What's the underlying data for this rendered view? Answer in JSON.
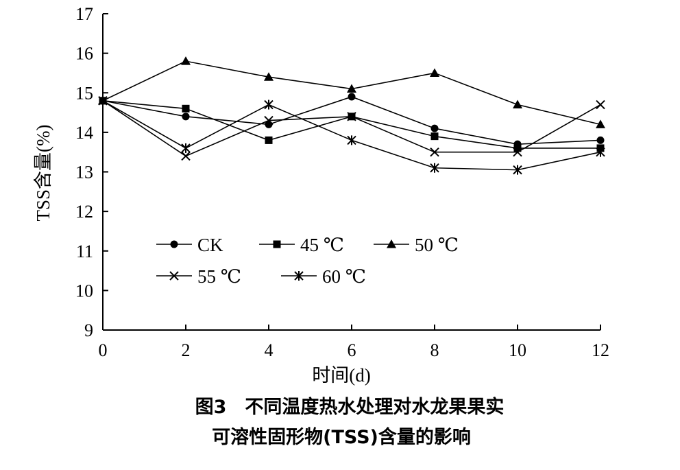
{
  "chart_data": {
    "type": "line",
    "x": [
      0,
      2,
      4,
      6,
      8,
      10,
      12
    ],
    "xlabel": "时间(d)",
    "ylabel": "TSS含量(%)",
    "xlim": [
      0,
      12
    ],
    "ylim": [
      9,
      17
    ],
    "xticks": [
      "0",
      "2",
      "4",
      "6",
      "8",
      "10",
      "12"
    ],
    "yticks": [
      "9",
      "10",
      "11",
      "12",
      "13",
      "14",
      "15",
      "16",
      "17"
    ],
    "grid": false,
    "legend_position": "bottom-left, two rows",
    "series": [
      {
        "name": "CK",
        "marker": "circle",
        "values": [
          14.8,
          14.4,
          14.2,
          14.9,
          14.1,
          13.7,
          13.8
        ]
      },
      {
        "name": "45 ℃",
        "marker": "square",
        "values": [
          14.8,
          14.6,
          13.8,
          14.4,
          13.9,
          13.6,
          13.6
        ]
      },
      {
        "name": "50 ℃",
        "marker": "triangle",
        "values": [
          14.8,
          15.8,
          15.4,
          15.1,
          15.5,
          14.7,
          14.2
        ]
      },
      {
        "name": "55 ℃",
        "marker": "x",
        "values": [
          14.8,
          13.4,
          14.3,
          14.4,
          13.5,
          13.5,
          14.7
        ]
      },
      {
        "name": "60 ℃",
        "marker": "asterisk",
        "values": [
          14.8,
          13.6,
          14.7,
          13.8,
          13.1,
          13.05,
          13.5
        ]
      }
    ]
  },
  "caption": {
    "line1": "图3　不同温度热水处理对水龙果果实",
    "line2": "可溶性固形物(TSS)含量的影响"
  }
}
